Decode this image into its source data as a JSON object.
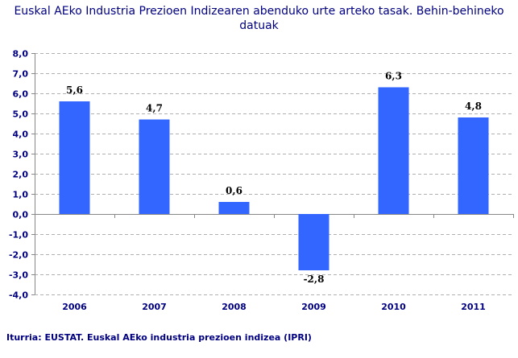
{
  "chart_data": {
    "type": "bar",
    "title": "Euskal AEko Industria Prezioen Indizearen abenduko urte arteko tasak.  Behin-behineko datuak",
    "categories": [
      "2006",
      "2007",
      "2008",
      "2009",
      "2010",
      "2011"
    ],
    "values": [
      5.6,
      4.7,
      0.6,
      -2.8,
      6.3,
      4.8
    ],
    "data_labels": [
      "5,6",
      "4,7",
      "0,6",
      "-2,8",
      "6,3",
      "4,8"
    ],
    "ylim": [
      -4,
      8
    ],
    "yticks": [
      "-4,0",
      "-3,0",
      "-2,0",
      "-1,0",
      "0,0",
      "1,0",
      "2,0",
      "3,0",
      "4,0",
      "5,0",
      "6,0",
      "7,0",
      "8,0"
    ],
    "grid": true,
    "bar_color": "#3366ff",
    "xlabel": "",
    "ylabel": ""
  },
  "source": "Iturria: EUSTAT. Euskal AEko industria prezioen indizea (IPRI)"
}
